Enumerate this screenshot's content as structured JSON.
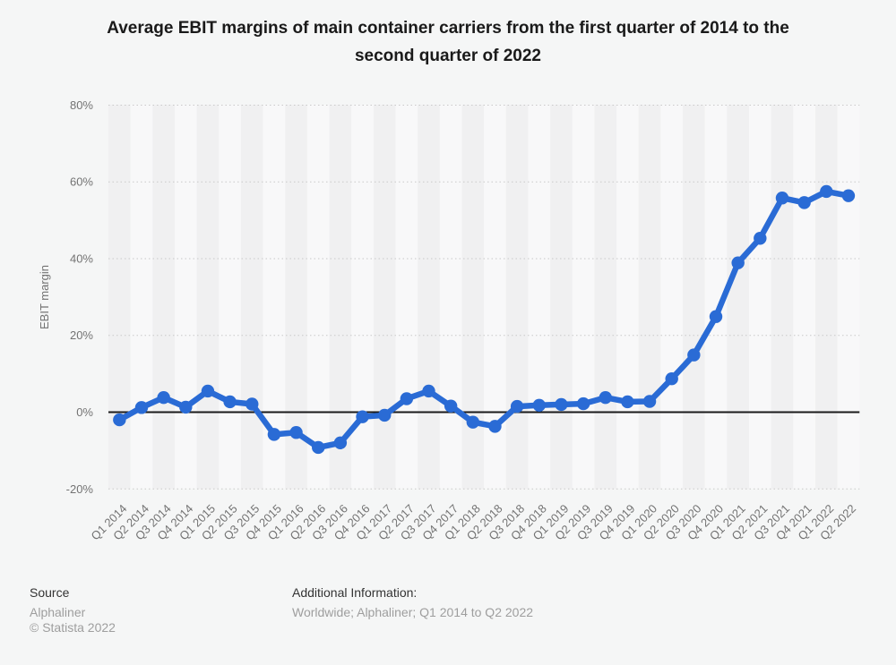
{
  "title": "Average EBIT margins of main container carriers from the first quarter of 2014 to the\nsecond quarter of 2022",
  "chart_data": {
    "type": "line",
    "categories": [
      "Q1 2014",
      "Q2 2014",
      "Q3 2014",
      "Q4 2014",
      "Q1 2015",
      "Q2 2015",
      "Q3 2015",
      "Q4 2015",
      "Q1 2016",
      "Q2 2016",
      "Q3 2016",
      "Q4 2016",
      "Q1 2017",
      "Q2 2017",
      "Q3 2017",
      "Q4 2017",
      "Q1 2018",
      "Q2 2018",
      "Q3 2018",
      "Q4 2018",
      "Q1 2019",
      "Q2 2019",
      "Q3 2019",
      "Q4 2019",
      "Q1 2020",
      "Q2 2020",
      "Q3 2020",
      "Q4 2020",
      "Q1 2021",
      "Q2 2021",
      "Q3 2021",
      "Q4 2021",
      "Q1 2022",
      "Q2 2022"
    ],
    "values": [
      -2,
      1.2,
      3.8,
      1.3,
      5.5,
      2.7,
      2.1,
      -5.8,
      -5.3,
      -9.2,
      -8,
      -1.2,
      -0.8,
      3.5,
      5.5,
      1.6,
      -2.6,
      -3.7,
      1.5,
      1.8,
      2,
      2.2,
      3.8,
      2.7,
      2.8,
      8.7,
      14.9,
      24.9,
      38.9,
      45.3,
      55.8,
      54.6,
      57.5,
      56.4
    ],
    "ylabel": "EBIT margin",
    "ylim": [
      -20,
      80
    ],
    "yticks": [
      80,
      60,
      40,
      20,
      0,
      -20
    ],
    "ytick_suffix": "%",
    "grid": "horizontal dotted lines at yticks, solid black zero line",
    "legend": "none",
    "plot_background": "alternating vertical quarter bands"
  },
  "footer": {
    "source_label": "Source",
    "source_value": "Alphaliner",
    "copyright": "© Statista 2022",
    "additional_label": "Additional Information:",
    "additional_value": "Worldwide; Alphaliner; Q1 2014 to Q2 2022"
  },
  "colors": {
    "accent": "#2a6bd5",
    "background": "#f5f6f6",
    "band_dark": "#f0f0f1",
    "band_light": "#f8f8f9",
    "grid": "#c9c9c9",
    "zero_line": "#1a1a1a",
    "axis_text": "#737373",
    "title_text": "#1a1a1a",
    "footer_dark": "#333333",
    "footer_gray": "#9e9e9e"
  }
}
